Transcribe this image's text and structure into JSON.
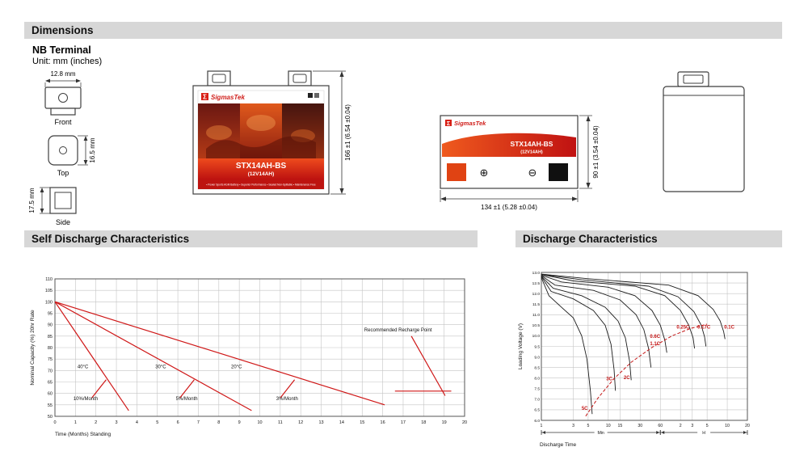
{
  "sections": {
    "dimensions": {
      "title": "Dimensions"
    },
    "self_discharge": {
      "title": "Self Discharge Characteristics"
    },
    "discharge": {
      "title": "Discharge Characteristics"
    }
  },
  "terminal": {
    "heading": "NB Terminal",
    "unit_note": "Unit: mm (inches)",
    "front_dim": "12.8 mm",
    "front_label": "Front",
    "top_dim": "16.5 mm",
    "top_label": "Top",
    "side_dim": "17.5 mm",
    "side_label": "Side"
  },
  "battery": {
    "sigma": "Σ",
    "brand": "SigmasTek",
    "model": "STX14AH-BS",
    "rating": "(12V14AH)",
    "tagline": "• Power Sports AGM Battery • Superior Performance • Sealed Non-Spillable • Maintenance Free",
    "front_height": "166 ±1 (6.54 ±0.04)",
    "top_width": "134 ±1 (5.28 ±0.04)",
    "top_depth": "90 ±1 (3.54 ±0.04)",
    "plus_symbol": "⊕",
    "minus_symbol": "⊖"
  },
  "chart_data": [
    {
      "type": "line",
      "title": "Self Discharge Characteristics",
      "xlabel": "Time (Months) Standing",
      "ylabel": "Nominal Capacity (%) 20hr Rate",
      "xlim": [
        0,
        20
      ],
      "xtick_step": 1,
      "ylim": [
        50,
        110
      ],
      "ytick_step": 5,
      "grid": true,
      "line_color": "#cf1717",
      "series": [
        {
          "name": "40°C self-discharge",
          "points": [
            [
              0,
              100
            ],
            [
              3.6,
              52.5
            ]
          ]
        },
        {
          "name": "30°C self-discharge",
          "points": [
            [
              0,
              100
            ],
            [
              9.6,
              52.5
            ]
          ]
        },
        {
          "name": "20°C self-discharge",
          "points": [
            [
              0,
              100
            ],
            [
              16.1,
              55
            ]
          ]
        },
        {
          "name": "recharge-pointer",
          "points": [
            [
              17.4,
              85
            ],
            [
              19.05,
              59
            ]
          ]
        },
        {
          "name": "recharge-level",
          "points": [
            [
              16.6,
              61
            ],
            [
              19.35,
              61
            ]
          ]
        },
        {
          "name": "leader-40C",
          "points": [
            [
              1.8,
              58
            ],
            [
              2.5,
              66
            ]
          ]
        },
        {
          "name": "leader-30C",
          "points": [
            [
              6.1,
              58
            ],
            [
              6.8,
              66
            ]
          ]
        },
        {
          "name": "leader-20C",
          "points": [
            [
              11.0,
              58
            ],
            [
              11.7,
              66
            ]
          ]
        }
      ],
      "annotations": [
        {
          "text": "40°C",
          "x": 1.1,
          "y": 71
        },
        {
          "text": "30°C",
          "x": 4.9,
          "y": 71
        },
        {
          "text": "20°C",
          "x": 8.6,
          "y": 71
        },
        {
          "text": "10%/Month",
          "x": 0.9,
          "y": 57
        },
        {
          "text": "5%/Month",
          "x": 5.9,
          "y": 57
        },
        {
          "text": "3%/Month",
          "x": 10.8,
          "y": 57
        },
        {
          "text": "Recommended Recharge Point",
          "x": 15.1,
          "y": 87
        }
      ]
    },
    {
      "type": "line",
      "title": "Discharge Characteristics",
      "xlabel": "Discharge Time",
      "ylabel": "Loading Voltage (V)",
      "x_scale": "log",
      "x_unit": "minutes",
      "x_max": 1200,
      "ylim": [
        6.0,
        13.0
      ],
      "ytick_step": 0.5,
      "grid": true,
      "curve_color": "#1c1c1c",
      "label_color": "#c41616",
      "xticks": [
        {
          "t": 1,
          "label": "1"
        },
        {
          "t": 3,
          "label": "3"
        },
        {
          "t": 5,
          "label": "5"
        },
        {
          "t": 10,
          "label": "10"
        },
        {
          "t": 15,
          "label": "15"
        },
        {
          "t": 30,
          "label": "30"
        },
        {
          "t": 60,
          "label": "60"
        },
        {
          "t": 120,
          "label": "2"
        },
        {
          "t": 180,
          "label": "3"
        },
        {
          "t": 300,
          "label": "5"
        },
        {
          "t": 600,
          "label": "10"
        },
        {
          "t": 1200,
          "label": "20"
        }
      ],
      "x_groups": [
        {
          "label": "Min",
          "from": 1,
          "to": 60
        },
        {
          "label": "H",
          "from": 60,
          "to": 1200
        }
      ],
      "series": [
        {
          "name": "0.1C",
          "points": [
            [
              1,
              12.92
            ],
            [
              5,
              12.7
            ],
            [
              80,
              12.4
            ],
            [
              220,
              11.9
            ],
            [
              370,
              11.25
            ],
            [
              470,
              10.7
            ],
            [
              530,
              10.2
            ],
            [
              555,
              9.85
            ]
          ]
        },
        {
          "name": "0.17C",
          "points": [
            [
              1,
              12.9
            ],
            [
              4,
              12.65
            ],
            [
              40,
              12.35
            ],
            [
              110,
              11.85
            ],
            [
              190,
              11.15
            ],
            [
              245,
              10.5
            ],
            [
              275,
              9.95
            ],
            [
              288,
              9.5
            ]
          ]
        },
        {
          "name": "0.25C",
          "points": [
            [
              1,
              12.9
            ],
            [
              3,
              12.6
            ],
            [
              25,
              12.35
            ],
            [
              70,
              11.9
            ],
            [
              120,
              11.2
            ],
            [
              160,
              10.5
            ],
            [
              185,
              9.9
            ],
            [
              195,
              9.4
            ]
          ]
        },
        {
          "name": "0.6C",
          "points": [
            [
              1,
              12.87
            ],
            [
              2,
              12.55
            ],
            [
              10,
              12.3
            ],
            [
              25,
              11.9
            ],
            [
              45,
              11.2
            ],
            [
              60,
              10.5
            ],
            [
              70,
              9.8
            ],
            [
              75,
              9.2
            ]
          ]
        },
        {
          "name": "1.1C",
          "points": [
            [
              1,
              12.85
            ],
            [
              1.6,
              12.4
            ],
            [
              6,
              12.15
            ],
            [
              15,
              11.7
            ],
            [
              26,
              11.0
            ],
            [
              34,
              10.3
            ],
            [
              40,
              9.4
            ],
            [
              43.5,
              8.5
            ]
          ]
        },
        {
          "name": "2C",
          "points": [
            [
              1,
              12.82
            ],
            [
              1.5,
              12.25
            ],
            [
              4,
              11.9
            ],
            [
              9,
              11.35
            ],
            [
              14,
              10.7
            ],
            [
              18,
              9.9
            ],
            [
              20.8,
              8.8
            ],
            [
              22,
              7.9
            ]
          ]
        },
        {
          "name": "3C",
          "points": [
            [
              1,
              12.8
            ],
            [
              1.4,
              12.1
            ],
            [
              3,
              11.75
            ],
            [
              6,
              11.2
            ],
            [
              9,
              10.5
            ],
            [
              11,
              9.6
            ],
            [
              12.2,
              8.4
            ],
            [
              12.8,
              7.4
            ]
          ]
        },
        {
          "name": "5C",
          "points": [
            [
              1,
              12.75
            ],
            [
              1.3,
              11.9
            ],
            [
              2,
              11.35
            ],
            [
              3,
              10.85
            ],
            [
              4,
              10.0
            ],
            [
              4.8,
              8.9
            ],
            [
              5.4,
              7.4
            ],
            [
              5.75,
              6.3
            ]
          ]
        }
      ],
      "cutoff_line": {
        "color": "#c41616",
        "dashed": true,
        "points": [
          [
            4.6,
            6.2
          ],
          [
            7,
            7.05
          ],
          [
            12,
            7.95
          ],
          [
            22,
            8.75
          ],
          [
            45,
            9.45
          ],
          [
            90,
            10.0
          ],
          [
            170,
            10.35
          ],
          [
            300,
            10.55
          ]
        ]
      },
      "labels": [
        {
          "text": "5C",
          "t": 4.0,
          "v": 6.5
        },
        {
          "text": "3C",
          "t": 9.3,
          "v": 7.9
        },
        {
          "text": "2C",
          "t": 17,
          "v": 7.95
        },
        {
          "text": "1.1C",
          "t": 42,
          "v": 9.55
        },
        {
          "text": "0.6C",
          "t": 42,
          "v": 9.9
        },
        {
          "text": "0.25C",
          "t": 105,
          "v": 10.35
        },
        {
          "text": "0.17C",
          "t": 215,
          "v": 10.35
        },
        {
          "text": "0.1C",
          "t": 540,
          "v": 10.35
        }
      ]
    }
  ]
}
